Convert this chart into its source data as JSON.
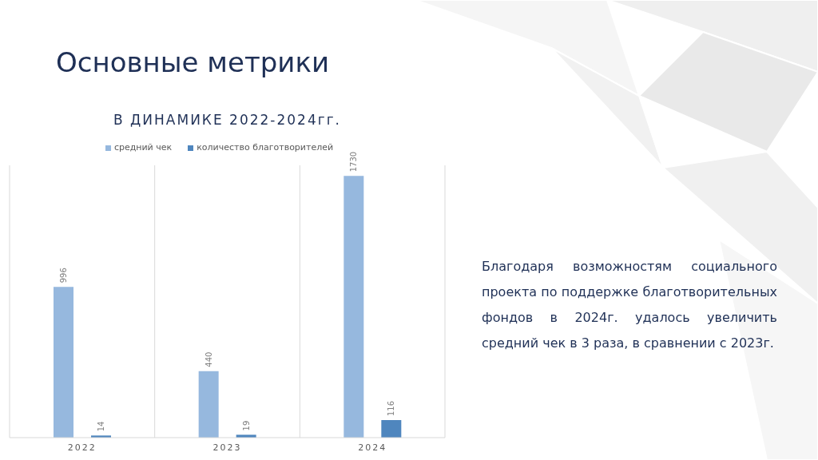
{
  "chart_data": {
    "type": "bar",
    "title": "Основные метрики",
    "subtitle": "В ДИНАМИКЕ 2022-2024гг.",
    "categories": [
      "2022",
      "2023",
      "2024"
    ],
    "series": [
      {
        "name": "средний чек",
        "color": "#96b8de",
        "values": [
          996,
          440,
          1730
        ]
      },
      {
        "name": "количество благотворителей",
        "color": "#4f86be",
        "values": [
          14,
          19,
          116
        ]
      }
    ],
    "data_labels": true,
    "grid": "x",
    "legend": "top",
    "tick_labels": "x",
    "annotations": [
      "Благодаря возможностям социального проекта по поддержке благотворительных фондов в 2024г. удалось увеличить средний чек в 3 раза, в сравнении с 2023г."
    ]
  }
}
